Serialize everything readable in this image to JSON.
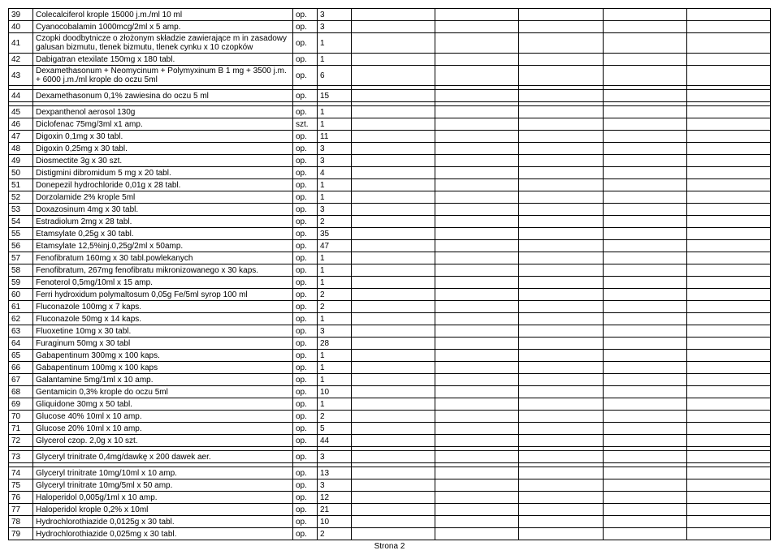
{
  "rows": [
    {
      "n": "39",
      "d": "Colecalciferol krople 15000 j.m./ml 10 ml",
      "u": "op.",
      "q": "3"
    },
    {
      "n": "40",
      "d": "Cyanocobalamin 1000mcg/2ml x 5 amp.",
      "u": "op.",
      "q": "3"
    },
    {
      "n": "41",
      "d": "Czopki doodbytnicze o złożonym składzie zawierające m in zasadowy galusan bizmutu, tlenek bizmutu, tlenek cynku x 10 czopków",
      "u": "op.",
      "q": "1"
    },
    {
      "n": "42",
      "d": "Dabigatran etexilate 150mg x 180 tabl.",
      "u": "op.",
      "q": "1"
    },
    {
      "n": "43",
      "d": "Dexamethasonum + Neomycinum + Polymyxinum B 1 mg + 3500 j.m. + 6000 j.m./ml krople do oczu 5ml",
      "u": "op.",
      "q": "6"
    }
  ],
  "rows2": [
    {
      "n": "44",
      "d": "Dexamethasonum 0,1% zawiesina do oczu 5 ml",
      "u": "op.",
      "q": "15"
    }
  ],
  "rows3": [
    {
      "n": "45",
      "d": "Dexpanthenol aerosol 130g",
      "u": "op.",
      "q": "1"
    },
    {
      "n": "46",
      "d": "Diclofenac 75mg/3ml x1 amp.",
      "u": "szt.",
      "q": "1"
    },
    {
      "n": "47",
      "d": "Digoxin 0,1mg x 30 tabl.",
      "u": "op.",
      "q": "11"
    },
    {
      "n": "48",
      "d": "Digoxin 0,25mg x 30 tabl.",
      "u": "op.",
      "q": "3"
    },
    {
      "n": "49",
      "d": "Diosmectite 3g x 30 szt.",
      "u": "op.",
      "q": "3"
    },
    {
      "n": "50",
      "d": "Distigmini dibromidum 5 mg x 20 tabl.",
      "u": "op.",
      "q": "4"
    },
    {
      "n": "51",
      "d": "Donepezil hydrochloride 0,01g x 28 tabl.",
      "u": "op.",
      "q": "1"
    },
    {
      "n": "52",
      "d": "Dorzolamide 2% krople 5ml",
      "u": "op.",
      "q": "1"
    },
    {
      "n": "53",
      "d": "Doxazosinum 4mg x 30 tabl.",
      "u": "op.",
      "q": "3"
    },
    {
      "n": "54",
      "d": "Estradiolum 2mg x 28 tabl.",
      "u": "op.",
      "q": "2"
    },
    {
      "n": "55",
      "d": "Etamsylate 0,25g x 30 tabl.",
      "u": "op.",
      "q": "35"
    },
    {
      "n": "56",
      "d": "Etamsylate 12,5%inj.0,25g/2ml x 50amp.",
      "u": "op.",
      "q": "47"
    },
    {
      "n": "57",
      "d": "Fenofibratum 160mg x 30 tabl.powlekanych",
      "u": "op.",
      "q": "1"
    },
    {
      "n": "58",
      "d": "Fenofibratum, 267mg fenofibratu mikronizowanego x 30 kaps.",
      "u": "op.",
      "q": "1"
    },
    {
      "n": "59",
      "d": "Fenoterol 0,5mg/10ml x 15 amp.",
      "u": "op.",
      "q": "1"
    },
    {
      "n": "60",
      "d": "Ferri hydroxidum polymaltosum 0,05g Fe/5ml syrop 100 ml",
      "u": "op.",
      "q": "2"
    },
    {
      "n": "61",
      "d": "Fluconazole 100mg x 7 kaps.",
      "u": "op.",
      "q": "2"
    },
    {
      "n": "62",
      "d": "Fluconazole 50mg x 14 kaps.",
      "u": "op.",
      "q": "1"
    },
    {
      "n": "63",
      "d": "Fluoxetine 10mg x 30 tabl.",
      "u": "op.",
      "q": "3"
    },
    {
      "n": "64",
      "d": "Furaginum 50mg x 30 tabl",
      "u": "op.",
      "q": "28"
    },
    {
      "n": "65",
      "d": "Gabapentinum 300mg x 100 kaps.",
      "u": "op.",
      "q": "1"
    },
    {
      "n": "66",
      "d": "Gabapentinum 100mg x 100 kaps",
      "u": "op.",
      "q": "1"
    },
    {
      "n": "67",
      "d": "Galantamine 5mg/1ml x 10 amp.",
      "u": "op.",
      "q": "1"
    },
    {
      "n": "68",
      "d": "Gentamicin 0,3% krople do oczu 5ml",
      "u": "op.",
      "q": "10"
    },
    {
      "n": "69",
      "d": "Gliquidone 30mg x 50 tabl.",
      "u": "op.",
      "q": "1"
    },
    {
      "n": "70",
      "d": "Glucose 40% 10ml x 10 amp.",
      "u": "op.",
      "q": "2"
    },
    {
      "n": "71",
      "d": "Glucose 20% 10ml x 10 amp.",
      "u": "op.",
      "q": "5"
    },
    {
      "n": "72",
      "d": "Glycerol czop. 2,0g x 10 szt.",
      "u": "op.",
      "q": "44"
    }
  ],
  "rows4": [
    {
      "n": "73",
      "d": "Glyceryl trinitrate 0,4mg/dawkę x 200 dawek aer.",
      "u": "op.",
      "q": "3"
    }
  ],
  "rows5": [
    {
      "n": "74",
      "d": "Glyceryl trinitrate 10mg/10ml x 10 amp.",
      "u": "op.",
      "q": "13"
    },
    {
      "n": "75",
      "d": "Glyceryl trinitrate 10mg/5ml x 50 amp.",
      "u": "op.",
      "q": "3"
    },
    {
      "n": "76",
      "d": "Haloperidol 0,005g/1ml x 10 amp.",
      "u": "op.",
      "q": "12"
    },
    {
      "n": "77",
      "d": "Haloperidol krople 0,2% x 10ml",
      "u": "op.",
      "q": "21"
    },
    {
      "n": "78",
      "d": "Hydrochlorothiazide 0,0125g x 30 tabl.",
      "u": "op.",
      "q": "10"
    },
    {
      "n": "79",
      "d": "Hydrochlorothiazide 0,025mg x 30 tabl.",
      "u": "op.",
      "q": "2"
    }
  ],
  "footer": "Strona 2",
  "emptyCols": 5
}
